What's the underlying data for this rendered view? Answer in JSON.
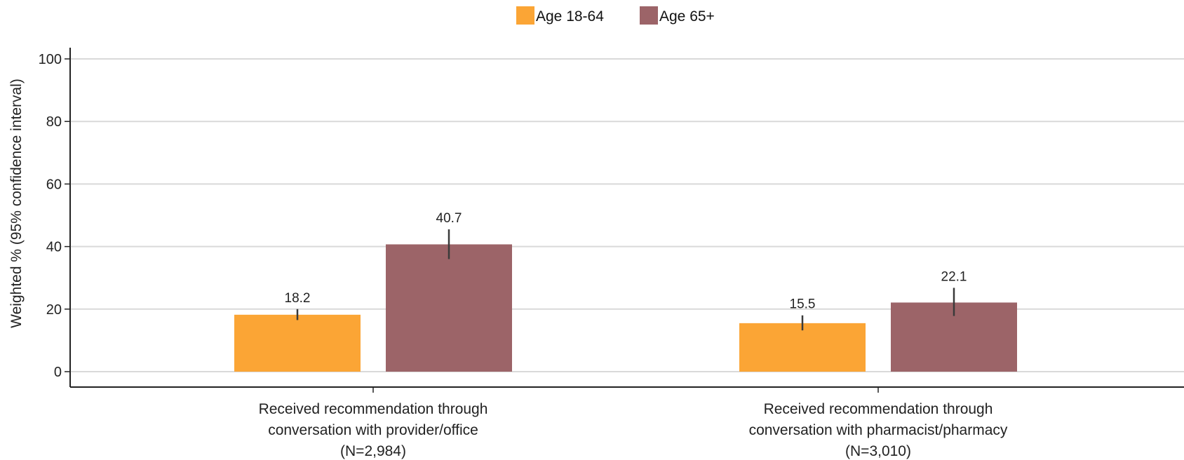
{
  "chart_data": {
    "type": "bar",
    "title": "",
    "xlabel": "",
    "ylabel": "Weighted % (95% confidence interval)",
    "ylim": [
      0,
      100
    ],
    "yticks": [
      0,
      20,
      40,
      60,
      80,
      100
    ],
    "grid": true,
    "legend_position": "top-center",
    "categories": [
      {
        "lines": [
          "Received recommendation through",
          "conversation with provider/office",
          "(N=2,984)"
        ]
      },
      {
        "lines": [
          "Received recommendation through",
          "conversation with pharmacist/pharmacy",
          "(N=3,010)"
        ]
      }
    ],
    "series": [
      {
        "name": "Age 18-64",
        "color": "#FBA535",
        "values": [
          18.2,
          15.5
        ],
        "labels": [
          "18.2",
          "15.5"
        ],
        "ci_low": [
          16.5,
          13.2
        ],
        "ci_high": [
          20.0,
          18.0
        ]
      },
      {
        "name": "Age 65+",
        "color": "#9C6468",
        "values": [
          40.7,
          22.1
        ],
        "labels": [
          "40.7",
          "22.1"
        ],
        "ci_low": [
          36.0,
          17.8
        ],
        "ci_high": [
          45.5,
          26.8
        ]
      }
    ]
  }
}
